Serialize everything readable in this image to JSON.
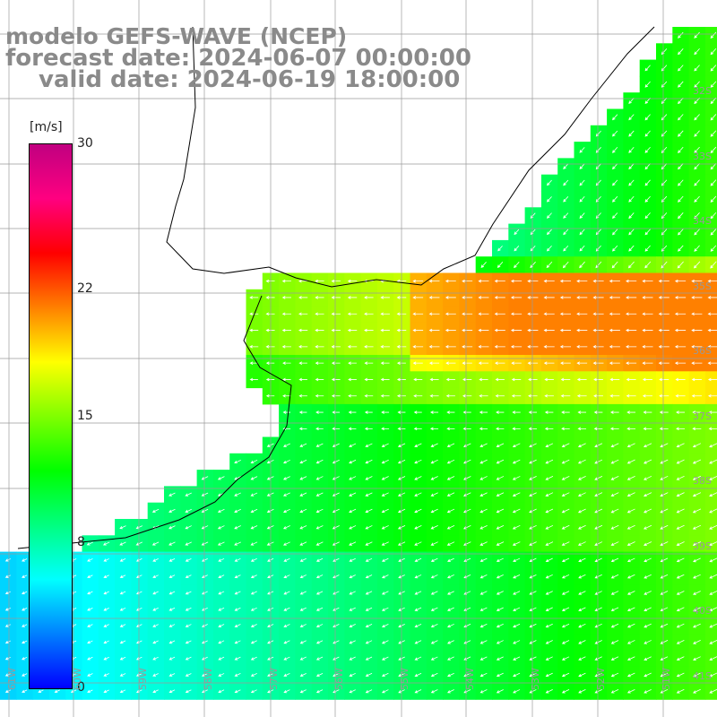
{
  "title": {
    "line1": "modelo GEFS-WAVE (NCEP)",
    "line2": "forecast date: 2024-06-07 00:00:00",
    "line3": "valid date: 2024-06-19 18:00:00"
  },
  "colorbar": {
    "unit": "[m/s]",
    "min": 0,
    "max": 30,
    "ticks": [
      {
        "label": "30",
        "value": 30
      },
      {
        "label": "22",
        "value": 22
      },
      {
        "label": "15",
        "value": 15
      },
      {
        "label": "8",
        "value": 8
      },
      {
        "label": "0",
        "value": 0
      }
    ],
    "colors": [
      "#0000ff",
      "#0080ff",
      "#00ffff",
      "#00ff80",
      "#00ff00",
      "#80ff00",
      "#ffff00",
      "#ff8000",
      "#ff0000",
      "#ff0080",
      "#c00080"
    ]
  },
  "lat_labels": [
    "32S",
    "33S",
    "34S",
    "35S",
    "36S",
    "37S",
    "38S",
    "39S",
    "40S",
    "41S"
  ],
  "lon_labels": [
    "61W",
    "60W",
    "59W",
    "58W",
    "57W",
    "56W",
    "55W",
    "54W",
    "53W",
    "52W",
    "51W"
  ],
  "land_color": "#ffffff"
}
